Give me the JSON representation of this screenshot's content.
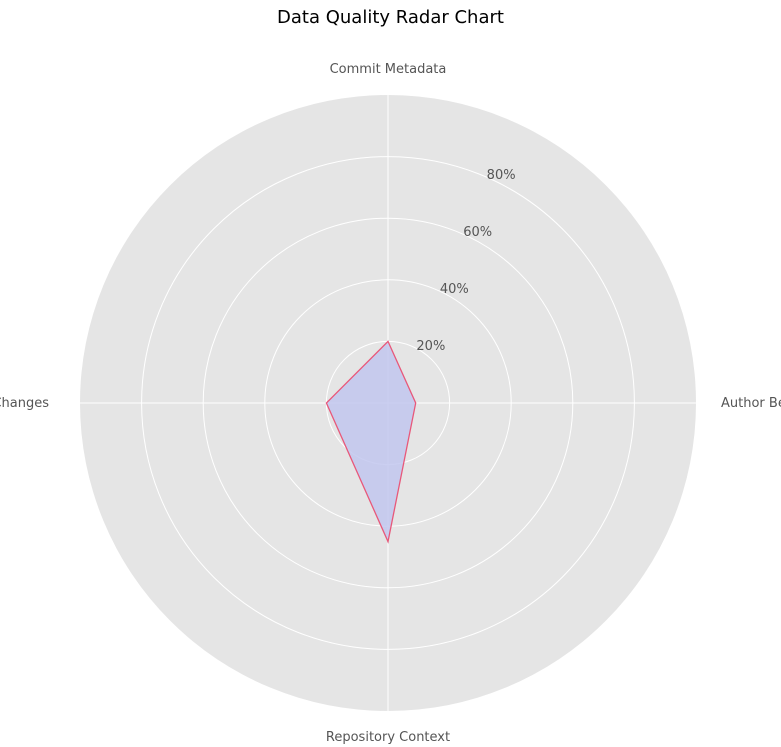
{
  "chart_data": {
    "type": "radar",
    "title": "Data Quality Radar Chart",
    "categories": [
      "Commit Metadata",
      "Author Behavior",
      "Repository Context",
      "Code Changes"
    ],
    "series": [
      {
        "values": [
          20,
          9,
          45,
          20
        ],
        "color": "#e8587a",
        "fill_color": "#c2c7ee"
      }
    ],
    "r_range": [
      0,
      100
    ],
    "r_ticks": [
      20,
      40,
      60,
      80
    ],
    "r_tick_labels": [
      "20%",
      "40%",
      "60%",
      "80%"
    ],
    "grid": true,
    "background_color": "#e5e5e5",
    "grid_color": "#ffffff"
  }
}
